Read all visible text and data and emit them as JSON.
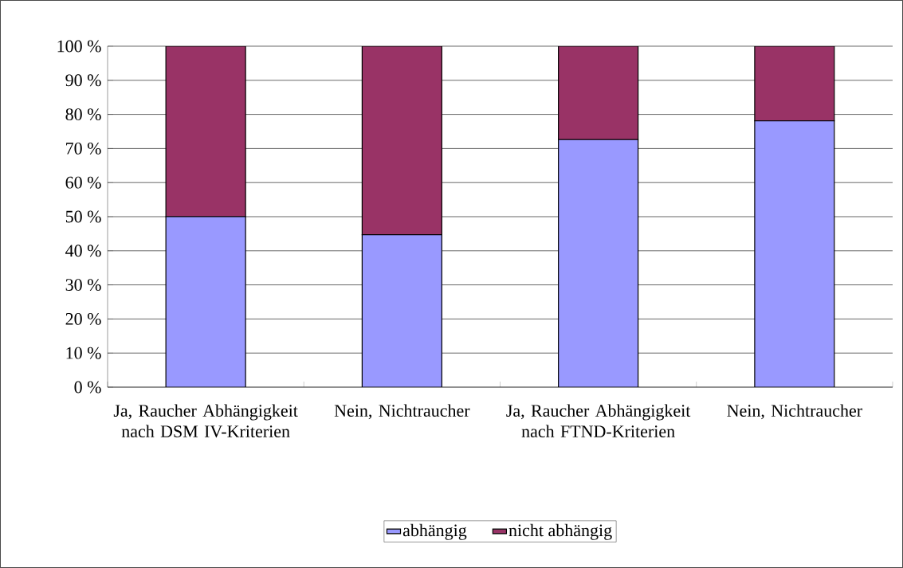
{
  "chart_data": {
    "type": "bar",
    "stacked": true,
    "categories": [
      "Ja, Raucher Abhängigkeit nach DSM IV-Kriterien",
      "Nein, Nichtraucher",
      "Ja, Raucher Abhängigkeit nach FTND-Kriterien",
      "Nein, Nichtraucher"
    ],
    "series": [
      {
        "name": "abhängig",
        "color": "#9999ff",
        "values": [
          50,
          44.7,
          72.6,
          78.1
        ]
      },
      {
        "name": "nicht abhängig",
        "color": "#993366",
        "values": [
          50,
          55.3,
          27.4,
          21.9
        ]
      }
    ],
    "ylim": [
      0,
      100
    ],
    "yticks": [
      {
        "value": 0,
        "label": "0 %"
      },
      {
        "value": 10,
        "label": "10 %"
      },
      {
        "value": 20,
        "label": "20 %"
      },
      {
        "value": 30,
        "label": "30 %"
      },
      {
        "value": 40,
        "label": "40 %"
      },
      {
        "value": 50,
        "label": "50 %"
      },
      {
        "value": 60,
        "label": "60 %"
      },
      {
        "value": 70,
        "label": "70 %"
      },
      {
        "value": 80,
        "label": "80 %"
      },
      {
        "value": 90,
        "label": "90 %"
      },
      {
        "value": 100,
        "label": "100 %"
      }
    ],
    "grid": "y",
    "legend": "bottom"
  }
}
